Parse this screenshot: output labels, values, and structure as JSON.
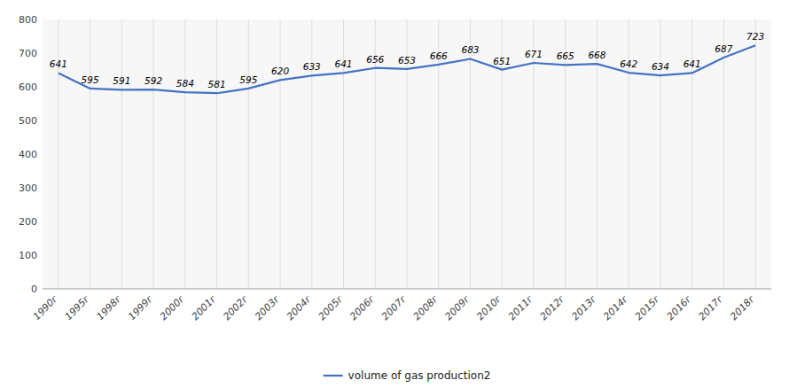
{
  "chart_data": {
    "type": "line",
    "categories": [
      "1990г",
      "1995г",
      "1998г",
      "1999г",
      "2000г",
      "2001г",
      "2002г",
      "2003г",
      "2004г",
      "2005г",
      "2006г",
      "2007г",
      "2008г",
      "2009г",
      "2010г",
      "2011г",
      "2012г",
      "2013г",
      "2014г",
      "2015г",
      "2016г",
      "2017г",
      "2018г"
    ],
    "series": [
      {
        "name": "volume of gas production2",
        "color": "#4472C4",
        "values": [
          641,
          595,
          591,
          592,
          584,
          581,
          595,
          620,
          633,
          641,
          656,
          653,
          666,
          683,
          651,
          671,
          665,
          668,
          642,
          634,
          641,
          687,
          723
        ]
      }
    ],
    "ylim": [
      0,
      800
    ],
    "yticks": [
      0,
      100,
      200,
      300,
      400,
      500,
      600,
      700,
      800
    ],
    "grid": "x",
    "legend": "bottom",
    "data_labels": true
  }
}
